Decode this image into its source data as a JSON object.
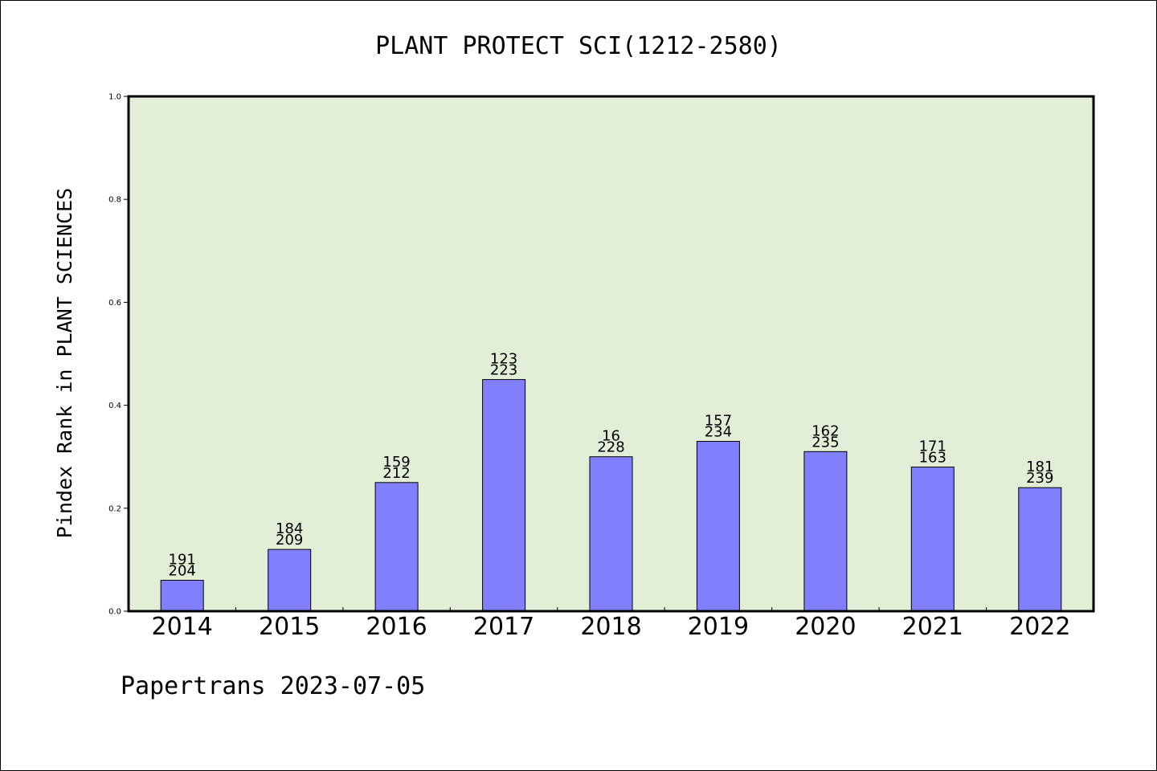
{
  "chart_data": {
    "type": "bar",
    "title": "PLANT PROTECT SCI(1212-2580)",
    "xlabel": "",
    "ylabel": "Pindex Rank in PLANT SCIENCES",
    "ylim": [
      0,
      1.0
    ],
    "yticks": [
      "0.0",
      "0.2",
      "0.4",
      "0.6",
      "0.8",
      "1.0"
    ],
    "grid": false,
    "background_color": "#e2efd6",
    "bar_color": "#8080ff",
    "categories": [
      "2014",
      "2015",
      "2016",
      "2017",
      "2018",
      "2019",
      "2020",
      "2021",
      "2022"
    ],
    "values": [
      0.06,
      0.12,
      0.25,
      0.45,
      0.3,
      0.33,
      0.31,
      0.28,
      0.24
    ],
    "bar_labels_top": [
      "191",
      "184",
      "159",
      "123",
      "16",
      "157",
      "162",
      "171",
      "181"
    ],
    "bar_labels_bottom": [
      "204",
      "209",
      "212",
      "223",
      "228",
      "234",
      "235",
      "163",
      "239"
    ]
  },
  "footer": {
    "text": "Papertrans 2023-07-05"
  }
}
